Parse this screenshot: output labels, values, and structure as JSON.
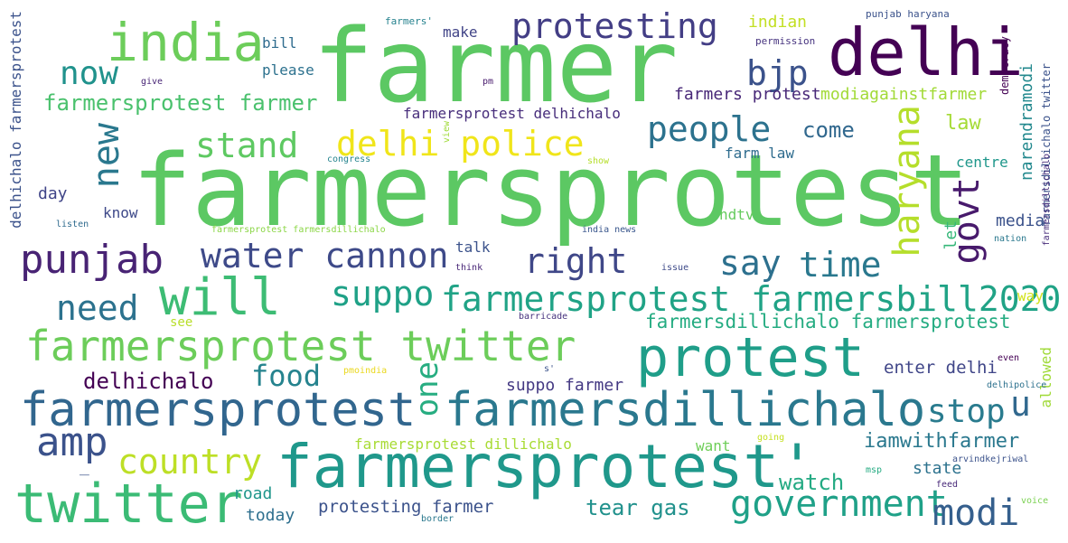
{
  "words": [
    {
      "text": "farmer",
      "color": "#5cc863"
    },
    {
      "text": "farmersprotest",
      "color": "#5cc863"
    },
    {
      "text": "delhi",
      "color": "#440154"
    },
    {
      "text": "india",
      "color": "#6ccd5a"
    },
    {
      "text": "protesting",
      "color": "#433e85"
    },
    {
      "text": "now",
      "color": "#20928c"
    },
    {
      "text": "bjp",
      "color": "#3b528b"
    },
    {
      "text": "farmersprotest farmer",
      "color": "#4ac16d"
    },
    {
      "text": "people",
      "color": "#2c728e"
    },
    {
      "text": "new",
      "color": "#2a788e"
    },
    {
      "text": "stand",
      "color": "#5ec962"
    },
    {
      "text": "delhi police",
      "color": "#f0e51a"
    },
    {
      "text": "come",
      "color": "#31688e"
    },
    {
      "text": "haryana",
      "color": "#b5de2b"
    },
    {
      "text": "govt",
      "color": "#481a6c"
    },
    {
      "text": "punjab",
      "color": "#482374"
    },
    {
      "text": "water cannon",
      "color": "#3e4a89"
    },
    {
      "text": "right",
      "color": "#3f4788"
    },
    {
      "text": "say",
      "color": "#2d708e"
    },
    {
      "text": "time",
      "color": "#2a788e"
    },
    {
      "text": "will",
      "color": "#3dbc74"
    },
    {
      "text": "suppo",
      "color": "#1fa187"
    },
    {
      "text": "farmersprotest farmersbill2020",
      "color": "#20a386"
    },
    {
      "text": "need",
      "color": "#2c728e"
    },
    {
      "text": "farmersdillichalo farmersprotest",
      "color": "#25ac82"
    },
    {
      "text": "farmersprotest twitter",
      "color": "#6ccd5a"
    },
    {
      "text": "protest",
      "color": "#1f9e89"
    },
    {
      "text": "food",
      "color": "#25838e"
    },
    {
      "text": "one",
      "color": "#27ad81"
    },
    {
      "text": "delhichalo",
      "color": "#440154"
    },
    {
      "text": "farmersprotest",
      "color": "#31668e"
    },
    {
      "text": "farmersdillichalo",
      "color": "#2a788e"
    },
    {
      "text": "stop",
      "color": "#297b8e"
    },
    {
      "text": "u",
      "color": "#31688e"
    },
    {
      "text": "amp",
      "color": "#3b528b"
    },
    {
      "text": "country",
      "color": "#bddf26"
    },
    {
      "text": "farmersprotest'",
      "color": "#1f988b"
    },
    {
      "text": "iamwithfarmer",
      "color": "#2a788e"
    },
    {
      "text": "twitter",
      "color": "#3bbb75"
    },
    {
      "text": "government",
      "color": "#1fa188"
    },
    {
      "text": "modi",
      "color": "#355f8d"
    },
    {
      "text": "watch",
      "color": "#24aa83"
    },
    {
      "text": "tear gas",
      "color": "#21918c"
    },
    {
      "text": "protesting farmer",
      "color": "#3b528b"
    },
    {
      "text": "farmersprotest dillichalo",
      "color": "#a8db34"
    },
    {
      "text": "suppo farmer",
      "color": "#443983"
    },
    {
      "text": "enter delhi",
      "color": "#404688"
    },
    {
      "text": "state",
      "color": "#2c728e"
    },
    {
      "text": "road",
      "color": "#1f968b"
    },
    {
      "text": "today",
      "color": "#2e6f8e"
    },
    {
      "text": "want",
      "color": "#6ece58"
    },
    {
      "text": "allowed",
      "color": "#a0da39"
    },
    {
      "text": "delhichalo farmersprotest",
      "color": "#3b528b"
    },
    {
      "text": "make",
      "color": "#414487"
    },
    {
      "text": "bill",
      "color": "#2f6c8e"
    },
    {
      "text": "please",
      "color": "#2c718e"
    },
    {
      "text": "indian",
      "color": "#c2df23"
    },
    {
      "text": "farmers protest",
      "color": "#482878"
    },
    {
      "text": "modiagainstfarmer",
      "color": "#a2da37"
    },
    {
      "text": "narendramodi",
      "color": "#23898e"
    },
    {
      "text": "law",
      "color": "#a5db36"
    },
    {
      "text": "centre",
      "color": "#1f978b"
    },
    {
      "text": "farmersprotest delhichalo",
      "color": "#472d7b"
    },
    {
      "text": "farm law",
      "color": "#2f6c8e"
    },
    {
      "text": "day",
      "color": "#404588"
    },
    {
      "text": "know",
      "color": "#3e4989"
    },
    {
      "text": "media",
      "color": "#3b528b"
    },
    {
      "text": "let",
      "color": "#35b779"
    },
    {
      "text": "ndtv",
      "color": "#65cb5e"
    },
    {
      "text": "talk",
      "color": "#3b528b"
    },
    {
      "text": "way",
      "color": "#d2e21b"
    },
    {
      "text": "see",
      "color": "#b8de29"
    },
    {
      "text": "democracy",
      "color": "#440154"
    },
    {
      "text": "farmersdillichalo twitter",
      "color": "#3b528b"
    },
    {
      "text": "farmersdillichalo",
      "color": "#472c7a"
    },
    {
      "text": "punjab haryana",
      "color": "#3b528b"
    },
    {
      "text": "permission",
      "color": "#46337f"
    },
    {
      "text": "farmers'",
      "color": "#26828e"
    },
    {
      "text": "give",
      "color": "#482576"
    },
    {
      "text": "pm",
      "color": "#481b6d"
    },
    {
      "text": "view",
      "color": "#a0da39"
    },
    {
      "text": "congress",
      "color": "#25848e"
    },
    {
      "text": "show",
      "color": "#b5de2b"
    },
    {
      "text": "listen",
      "color": "#2f6b8e"
    },
    {
      "text": "farmersprotest farmersdillichalo",
      "color": "#8bd646"
    },
    {
      "text": "india news",
      "color": "#39568c"
    },
    {
      "text": "nation",
      "color": "#2a788e"
    },
    {
      "text": "think",
      "color": "#482677"
    },
    {
      "text": "issue",
      "color": "#3e4a89"
    },
    {
      "text": "barricade",
      "color": "#46327e"
    },
    {
      "text": "pmoindia",
      "color": "#ead81e"
    },
    {
      "text": "s'",
      "color": "#3b528b"
    },
    {
      "text": "even",
      "color": "#440154"
    },
    {
      "text": "delhipolice",
      "color": "#2d718e"
    },
    {
      "text": "going",
      "color": "#c5e021"
    },
    {
      "text": "arvindkejriwal",
      "color": "#3b528b"
    },
    {
      "text": "msp",
      "color": "#25ab82"
    },
    {
      "text": "feed",
      "color": "#482979"
    },
    {
      "text": "voice",
      "color": "#7ad151"
    },
    {
      "text": "border",
      "color": "#2a788e"
    },
    {
      "text": "_",
      "color": "#3b528b"
    }
  ]
}
